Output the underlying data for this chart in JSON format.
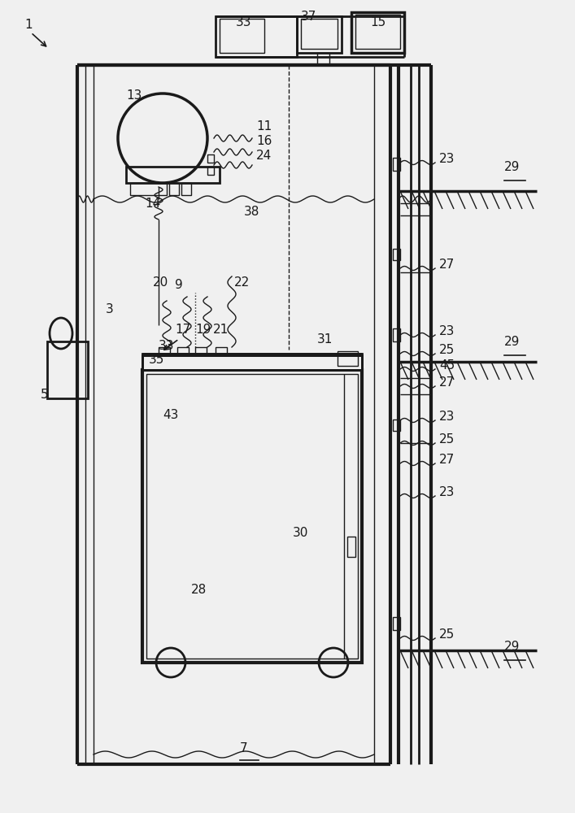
{
  "bg_color": "#f0f0f0",
  "line_color": "#1a1a1a",
  "lw": 2.0,
  "tlw": 1.0,
  "fig_w": 7.07,
  "fig_h": 10.0
}
